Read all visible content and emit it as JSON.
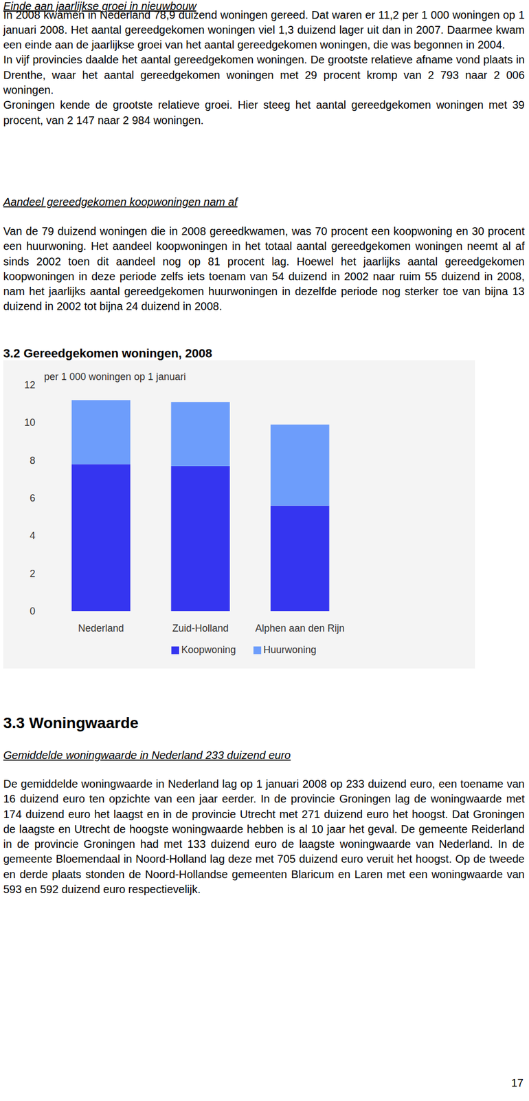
{
  "sections": [
    {
      "heading": "Einde aan jaarlijkse groei in nieuwbouw",
      "paragraphs": [
        "In 2008 kwamen in Nederland 78,9 duizend woningen gereed. Dat waren er 11,2 per 1 000 woningen op 1 januari 2008. Het aantal gereedgekomen woningen viel 1,3 duizend lager uit dan in 2007. Daarmee kwam een einde aan de jaarlijkse groei van het aantal gereedgekomen woningen, die was begonnen in 2004.",
        "In vijf provincies daalde het aantal gereedgekomen woningen. De grootste relatieve afname vond plaats in Drenthe, waar het aantal gereedgekomen woningen met 29 procent kromp van 2 793 naar 2 006 woningen.",
        "Groningen kende de grootste relatieve groei. Hier steeg het aantal gereedgekomen woningen met 39 procent, van 2 147 naar 2 984 woningen."
      ]
    },
    {
      "heading": "Aandeel gereedgekomen koopwoningen nam af",
      "paragraphs": [
        "Van de 79 duizend woningen die in 2008 gereedkwamen, was 70 procent een koopwoning en 30 procent een huurwoning. Het aandeel koopwoningen in het totaal aantal gereedgekomen woningen neemt al af sinds 2002 toen dit aandeel nog op 81 procent lag. Hoewel het jaarlijks aantal gereedgekomen koopwoningen in deze periode zelfs iets toenam van 54 duizend in 2002 naar ruim 55 duizend in 2008, nam het jaarlijks aantal gereedgekomen huurwoningen in dezelfde periode nog sterker toe van bijna 13 duizend in 2002 tot bijna 24 duizend in 2008."
      ]
    },
    {
      "title": "3.3 Woningwaarde",
      "heading": "Gemiddelde woningwaarde in Nederland 233 duizend euro",
      "paragraphs": [
        "De gemiddelde woningwaarde in Nederland lag op 1 januari 2008 op 233 duizend euro, een toename van 16 duizend euro ten opzichte van een jaar eerder. In de provincie Groningen lag de woningwaarde met 174 duizend euro het laagst en in de provincie Utrecht met 271 duizend euro het hoogst. Dat Groningen de laagste en Utrecht de hoogste woningwaarde hebben is al 10 jaar het geval. De gemeente Reiderland in de provincie Groningen had met 133 duizend euro de laagste woningwaarde van Nederland. In de gemeente Bloemendaal in Noord-Holland lag deze met 705 duizend euro veruit het hoogst. Op de tweede en derde plaats stonden de Noord-Hollandse gemeenten Blaricum en Laren met een woningwaarde van 593 en 592 duizend euro respectievelijk."
      ]
    }
  ],
  "chart_heading": "3.2 Gereedgekomen woningen, 2008",
  "chart_data": {
    "type": "bar",
    "subtitle": "per 1 000 woningen op 1 januari",
    "categories": [
      "Nederland",
      "Zuid-Holland",
      "Alphen aan den Rijn"
    ],
    "series": [
      {
        "name": "Koopwoning",
        "color": "#3535f0",
        "values": [
          7.8,
          7.7,
          5.6
        ]
      },
      {
        "name": "Huurwoning",
        "color": "#6d9dfb",
        "values": [
          3.4,
          3.4,
          4.3
        ]
      }
    ],
    "stacked": true,
    "ylim": [
      0,
      12
    ],
    "yticks": [
      0,
      2,
      4,
      6,
      8,
      10,
      12
    ],
    "grid": false,
    "legend": "bottom"
  },
  "page_number": "17"
}
